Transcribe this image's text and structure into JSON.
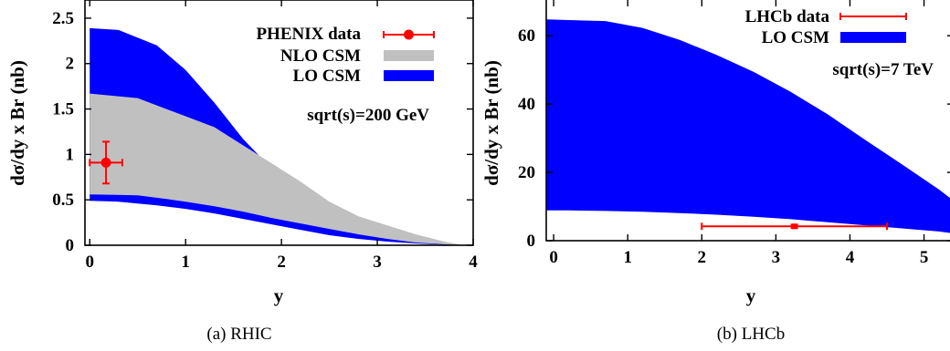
{
  "chart_data": [
    {
      "id": "rhic",
      "type": "area",
      "caption": "(a) RHIC",
      "xlabel": "y",
      "ylabel": "dσ/dy x Br (nb)",
      "xlim": [
        -0.05,
        4.0
      ],
      "ylim": [
        0,
        2.7
      ],
      "xticks": [
        0,
        1,
        2,
        3,
        4
      ],
      "xtick_labels": [
        "0",
        "1",
        "2",
        "3",
        "4"
      ],
      "yticks": [
        0,
        0.5,
        1,
        1.5,
        2,
        2.5
      ],
      "ytick_labels": [
        "0",
        "0.5",
        "1",
        "1.5",
        "2",
        "2.5"
      ],
      "annotation": "sqrt(s)=200 GeV",
      "legend_position": "top-right",
      "series": [
        {
          "name": "LO CSM",
          "kind": "band",
          "color": "#0000ff",
          "x": [
            0.0,
            0.3,
            0.7,
            1.0,
            1.3,
            1.6,
            1.9,
            2.2,
            2.5,
            2.8,
            3.1,
            3.4,
            3.7,
            3.9
          ],
          "upper": [
            2.39,
            2.37,
            2.2,
            1.93,
            1.57,
            1.17,
            0.84,
            0.58,
            0.38,
            0.22,
            0.12,
            0.06,
            0.02,
            0.0
          ],
          "lower": [
            0.49,
            0.48,
            0.44,
            0.4,
            0.35,
            0.29,
            0.23,
            0.17,
            0.11,
            0.07,
            0.04,
            0.02,
            0.005,
            0.0
          ]
        },
        {
          "name": "NLO CSM",
          "kind": "band",
          "color": "#c0c0c0",
          "x": [
            0.0,
            0.5,
            0.8,
            1.0,
            1.3,
            1.6,
            1.9,
            2.2,
            2.5,
            2.8,
            3.1,
            3.4,
            3.7,
            3.9
          ],
          "upper": [
            1.67,
            1.62,
            1.5,
            1.42,
            1.3,
            1.1,
            0.9,
            0.7,
            0.48,
            0.32,
            0.22,
            0.12,
            0.04,
            0.0
          ],
          "lower": [
            0.56,
            0.55,
            0.51,
            0.48,
            0.43,
            0.37,
            0.3,
            0.24,
            0.18,
            0.12,
            0.07,
            0.03,
            0.01,
            0.0
          ]
        },
        {
          "name": "PHENIX data",
          "kind": "points",
          "color": "#ff0000",
          "points": [
            {
              "x": 0.17,
              "y": 0.91,
              "xerr": 0.17,
              "yerr": 0.23
            }
          ]
        }
      ]
    },
    {
      "id": "lhcb",
      "type": "area",
      "caption": "(b) LHCb",
      "xlabel": "y",
      "ylabel": "dσ/dy x Br (nb)",
      "xlim": [
        -0.1,
        5.4
      ],
      "ylim": [
        0,
        71
      ],
      "xticks": [
        0,
        1,
        2,
        3,
        4,
        5
      ],
      "xtick_labels": [
        "0",
        "1",
        "2",
        "3",
        "4",
        "5"
      ],
      "yticks": [
        0,
        20,
        40,
        60
      ],
      "ytick_labels": [
        "0",
        "20",
        "40",
        "60"
      ],
      "annotation": "sqrt(s)=7 TeV",
      "legend_position": "top-right",
      "series": [
        {
          "name": "LO CSM",
          "kind": "band",
          "color": "#0000ff",
          "x": [
            -0.1,
            0.2,
            0.7,
            1.2,
            1.7,
            2.2,
            2.7,
            3.2,
            3.7,
            4.2,
            4.7,
            5.2,
            5.4
          ],
          "upper": [
            64.8,
            64.6,
            64.3,
            62.3,
            58.8,
            54.4,
            49.4,
            43.6,
            37.0,
            29.6,
            22.4,
            15.0,
            11.7
          ],
          "lower": [
            8.9,
            8.85,
            8.7,
            8.5,
            8.1,
            7.6,
            7.0,
            6.3,
            5.4,
            4.5,
            3.6,
            2.7,
            2.1
          ]
        },
        {
          "name": "LHCb data",
          "kind": "points",
          "color": "#ff0000",
          "points": [
            {
              "x": 3.25,
              "y": 4.2,
              "xerr": 1.25,
              "yerr": 0.5
            }
          ]
        }
      ]
    }
  ]
}
